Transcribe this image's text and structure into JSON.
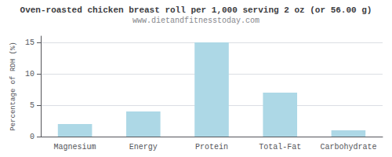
{
  "chart_data": {
    "type": "bar",
    "title": "Oven-roasted chicken breast roll per 1,000 serving 2 oz (or 56.00 g)",
    "subtitle": "www.dietandfitnesstoday.com",
    "categories": [
      "Magnesium",
      "Energy",
      "Protein",
      "Total-Fat",
      "Carbohydrate"
    ],
    "values": [
      2.0,
      4.0,
      15.0,
      7.0,
      1.0
    ],
    "color": "#add8e6",
    "ylabel": "Percentage of RDH (%)",
    "ylim": [
      0,
      16
    ],
    "yticks": [
      0,
      5,
      10,
      15
    ],
    "grid": true
  }
}
